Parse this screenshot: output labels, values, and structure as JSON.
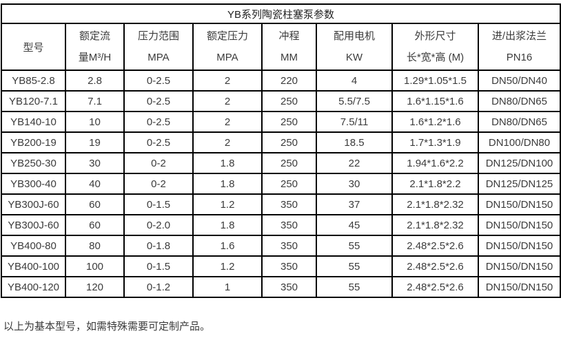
{
  "table": {
    "title": "YB系列陶瓷柱塞泵参数",
    "columns": [
      {
        "line1": "型号",
        "line2": ""
      },
      {
        "line1": "额定流",
        "line2": "量M³/H"
      },
      {
        "line1": "压力范围",
        "line2": "MPA"
      },
      {
        "line1": "额定压力",
        "line2": "MPA"
      },
      {
        "line1": "冲程",
        "line2": "MM"
      },
      {
        "line1": "配用电机",
        "line2": "KW"
      },
      {
        "line1": "外形尺寸",
        "line2": "长*宽*高 (M)"
      },
      {
        "line1": "进/出浆法兰",
        "line2": "PN16"
      }
    ],
    "rows": [
      [
        "YB85-2.8",
        "2.8",
        "0-2.5",
        "2",
        "220",
        "4",
        "1.29*1.05*1.5",
        "DN50/DN40"
      ],
      [
        "YB120-7.1",
        "7.1",
        "0-2.5",
        "2",
        "250",
        "5.5/7.5",
        "1.6*1.15*1.6",
        "DN80/DN65"
      ],
      [
        "YB140-10",
        "10",
        "0-2.5",
        "2",
        "250",
        "7.5/11",
        "1.6*1.2*1.6",
        "DN80/DN65"
      ],
      [
        "YB200-19",
        "19",
        "0-2.5",
        "2",
        "250",
        "18.5",
        "1.7*1.3*1.9",
        "DN100/DN80"
      ],
      [
        "YB250-30",
        "30",
        "0-2",
        "1.8",
        "250",
        "22",
        "1.94*1.6*2.2",
        "DN125/DN100"
      ],
      [
        "YB300-40",
        "40",
        "0-2",
        "1.8",
        "250",
        "30",
        "2.1*1.8*2.2",
        "DN125/DN125"
      ],
      [
        "YB300J-60",
        "60",
        "0-1.5",
        "1.2",
        "350",
        "37",
        "2.1*1.8*2.32",
        "DN150/DN150"
      ],
      [
        "YB300J-60",
        "60",
        "0-2.0",
        "1.8",
        "350",
        "45",
        "2.1*1.8*2.32",
        "DN150/DN150"
      ],
      [
        "YB400-80",
        "80",
        "0-1.8",
        "1.6",
        "350",
        "55",
        "2.48*2.5*2.6",
        "DN150/DN150"
      ],
      [
        "YB400-100",
        "100",
        "0-1.5",
        "1.2",
        "350",
        "55",
        "2.48*2.5*2.6",
        "DN150/DN150"
      ],
      [
        "YB400-120",
        "120",
        "0-1.2",
        "1",
        "350",
        "55",
        "2.48*2.5*2.6",
        "DN150/DN150"
      ]
    ],
    "footnote": "以上为基本型号，如需特殊需要可定制产品。"
  },
  "colors": {
    "border": "#000000",
    "text": "#3b3b3b",
    "background": "#ffffff"
  }
}
